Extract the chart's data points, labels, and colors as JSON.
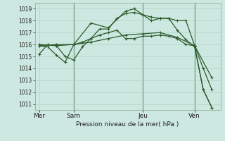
{
  "bg_color": "#cce8e0",
  "grid_color_major": "#aacfbf",
  "grid_color_minor": "#bbddd0",
  "line_color": "#2d5a2d",
  "ylabel": "Pression niveau de la mer( hPa )",
  "xtick_labels": [
    "Mer",
    "Sam",
    "Jeu",
    "Ven"
  ],
  "xtick_positions": [
    0,
    24,
    72,
    108
  ],
  "ylim": [
    1010.5,
    1019.5
  ],
  "yticks": [
    1011,
    1012,
    1013,
    1014,
    1015,
    1016,
    1017,
    1018,
    1019
  ],
  "xlim": [
    -3,
    126
  ],
  "vlines_x": [
    24,
    72,
    108
  ],
  "series": [
    {
      "x": [
        0,
        6,
        12,
        18,
        24,
        30,
        36,
        42,
        48,
        54,
        60,
        66,
        72,
        78,
        84,
        90,
        96,
        102,
        108,
        114,
        120
      ],
      "y": [
        1015.2,
        1016.0,
        1015.9,
        1015.0,
        1014.7,
        1015.8,
        1016.5,
        1017.3,
        1017.3,
        1018.2,
        1018.6,
        1018.7,
        1018.5,
        1018.0,
        1018.2,
        1018.2,
        1017.2,
        1016.4,
        1015.8,
        1012.2,
        1010.7
      ]
    },
    {
      "x": [
        0,
        6,
        12,
        18,
        24,
        30,
        36,
        42,
        48,
        54,
        60,
        66,
        72,
        78,
        84,
        90,
        96,
        102,
        108,
        114,
        120
      ],
      "y": [
        1015.9,
        1015.8,
        1015.1,
        1014.5,
        1016.0,
        1016.2,
        1016.5,
        1016.8,
        1017.0,
        1017.2,
        1016.5,
        1016.5,
        1016.7,
        1016.7,
        1016.8,
        1016.7,
        1016.5,
        1016.0,
        1015.9,
        1014.0,
        1012.2
      ]
    },
    {
      "x": [
        0,
        12,
        24,
        36,
        48,
        60,
        72,
        84,
        96,
        108,
        120
      ],
      "y": [
        1016.0,
        1015.9,
        1016.0,
        1016.2,
        1016.5,
        1016.8,
        1016.9,
        1017.0,
        1016.6,
        1015.9,
        1013.2
      ]
    },
    {
      "x": [
        0,
        12,
        24,
        36,
        48,
        60,
        66,
        72,
        78,
        84,
        90,
        96,
        102,
        108,
        114,
        120
      ],
      "y": [
        1015.9,
        1016.0,
        1016.0,
        1017.8,
        1017.4,
        1018.8,
        1019.0,
        1018.5,
        1018.3,
        1018.2,
        1018.2,
        1018.0,
        1018.0,
        1015.9,
        1012.2,
        1010.7
      ]
    }
  ],
  "marker": "+",
  "linewidth": 0.9,
  "markersize": 3
}
